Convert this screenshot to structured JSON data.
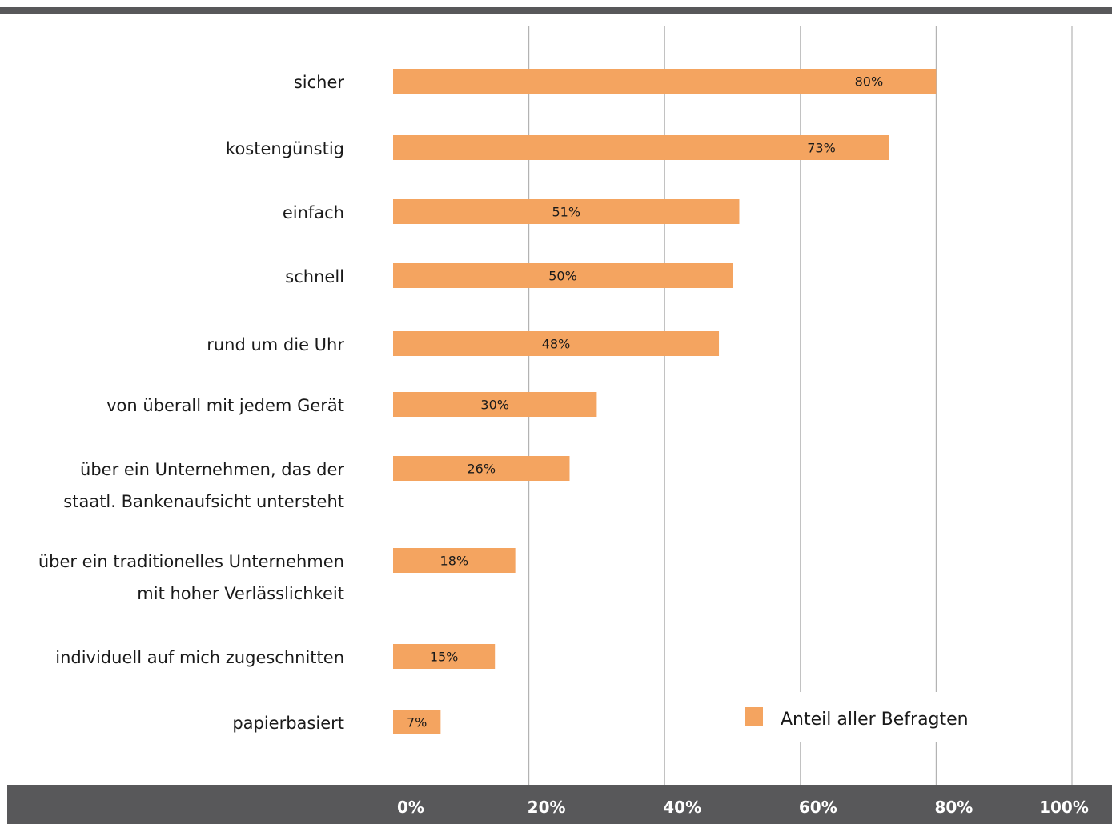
{
  "chart_data": {
    "type": "bar",
    "orientation": "horizontal",
    "categories": [
      [
        "sicher"
      ],
      [
        "kostengünstig"
      ],
      [
        "einfach"
      ],
      [
        "schnell"
      ],
      [
        "rund um die Uhr"
      ],
      [
        "von überall mit jedem Gerät"
      ],
      [
        "über ein Unternehmen, das der",
        "staatl. Bankenaufsicht untersteht"
      ],
      [
        "über ein traditionelles Unternehmen",
        "mit hoher Verlässlichkeit"
      ],
      [
        "individuell auf mich zugeschnitten"
      ],
      [
        "papierbasiert"
      ]
    ],
    "series": [
      {
        "name": "Anteil aller Befragten",
        "color": "#f4a460",
        "values": [
          80,
          73,
          51,
          50,
          48,
          30,
          26,
          18,
          15,
          7
        ],
        "labels": [
          "80%",
          "73%",
          "51%",
          "50%",
          "48%",
          "30%",
          "26%",
          "18%",
          "15%",
          "7%"
        ]
      }
    ],
    "xlim": [
      0,
      100
    ],
    "ticks": [
      0,
      20,
      40,
      60,
      80,
      100
    ],
    "tick_labels": [
      "0%",
      "20%",
      "40%",
      "60%",
      "80%",
      "100%"
    ],
    "grid": true,
    "legend": "bottom-right"
  }
}
